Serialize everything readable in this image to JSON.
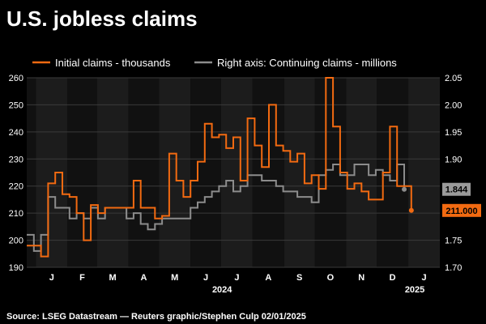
{
  "header": {
    "title": "U.S. jobless claims",
    "source": "Source: LSEG Datastream — Reuters graphic/Stephen Culp 02/01/2025"
  },
  "colors": {
    "background": "#000000",
    "band_light": "#1c1c1c",
    "band_dark": "#111111",
    "initial": "#f26a11",
    "continuing": "#8c8c8c",
    "grid": "#3a3a3a"
  },
  "chart_data": {
    "type": "line",
    "grid": true,
    "legend_position": "top",
    "legend": [
      "Initial claims - thousands",
      "Right axis: Continuing claims - millions"
    ],
    "y_left": {
      "min": 190,
      "max": 260,
      "ticks": [
        "190",
        "200",
        "210",
        "220",
        "230",
        "240",
        "250",
        "260"
      ]
    },
    "y_right": {
      "min": 1.7,
      "max": 2.05,
      "ticks": [
        "1.70",
        "1.75",
        "1.80",
        "1.85",
        "1.90",
        "1.95",
        "2.00",
        "2.05"
      ]
    },
    "x_range": [
      "2023-12-23",
      "2025-02-01"
    ],
    "month_labels": [
      "J",
      "F",
      "M",
      "A",
      "M",
      "J",
      "J",
      "A",
      "S",
      "O",
      "N",
      "D",
      "J"
    ],
    "year_labels": [
      "2024",
      "2025"
    ],
    "series": [
      {
        "name": "Initial claims - thousands",
        "axis": "left",
        "points": [
          [
            "2023-12-23",
            198
          ],
          [
            "2023-12-30",
            198
          ],
          [
            "2024-01-06",
            194
          ],
          [
            "2024-01-13",
            221
          ],
          [
            "2024-01-20",
            225
          ],
          [
            "2024-01-27",
            217
          ],
          [
            "2024-02-03",
            216
          ],
          [
            "2024-02-10",
            210
          ],
          [
            "2024-02-17",
            200
          ],
          [
            "2024-02-24",
            213
          ],
          [
            "2024-03-02",
            210
          ],
          [
            "2024-03-09",
            212
          ],
          [
            "2024-03-16",
            212
          ],
          [
            "2024-03-23",
            212
          ],
          [
            "2024-03-30",
            212
          ],
          [
            "2024-04-06",
            222
          ],
          [
            "2024-04-13",
            212
          ],
          [
            "2024-04-20",
            212
          ],
          [
            "2024-04-27",
            208
          ],
          [
            "2024-05-04",
            209
          ],
          [
            "2024-05-11",
            232
          ],
          [
            "2024-05-18",
            222
          ],
          [
            "2024-05-25",
            216
          ],
          [
            "2024-06-01",
            222
          ],
          [
            "2024-06-08",
            229
          ],
          [
            "2024-06-15",
            243
          ],
          [
            "2024-06-22",
            238
          ],
          [
            "2024-06-29",
            239
          ],
          [
            "2024-07-06",
            234
          ],
          [
            "2024-07-13",
            238
          ],
          [
            "2024-07-20",
            222
          ],
          [
            "2024-07-27",
            245
          ],
          [
            "2024-08-03",
            235
          ],
          [
            "2024-08-10",
            227
          ],
          [
            "2024-08-17",
            250
          ],
          [
            "2024-08-24",
            235
          ],
          [
            "2024-08-31",
            233
          ],
          [
            "2024-09-07",
            229
          ],
          [
            "2024-09-14",
            232
          ],
          [
            "2024-09-21",
            221
          ],
          [
            "2024-09-28",
            224
          ],
          [
            "2024-10-05",
            219
          ],
          [
            "2024-10-12",
            260
          ],
          [
            "2024-10-19",
            242
          ],
          [
            "2024-10-26",
            225
          ],
          [
            "2024-11-02",
            219
          ],
          [
            "2024-11-09",
            221
          ],
          [
            "2024-11-16",
            218
          ],
          [
            "2024-11-23",
            215
          ],
          [
            "2024-11-30",
            215
          ],
          [
            "2024-12-07",
            225
          ],
          [
            "2024-12-14",
            242
          ],
          [
            "2024-12-21",
            220
          ],
          [
            "2024-12-28",
            220
          ],
          [
            "2025-01-04",
            211
          ]
        ],
        "last_value_label": "211.000"
      },
      {
        "name": "Right axis: Continuing claims - millions",
        "axis": "right",
        "points": [
          [
            "2023-12-23",
            1.76
          ],
          [
            "2023-12-30",
            1.73
          ],
          [
            "2024-01-06",
            1.76
          ],
          [
            "2024-01-13",
            1.83
          ],
          [
            "2024-01-20",
            1.81
          ],
          [
            "2024-01-27",
            1.81
          ],
          [
            "2024-02-03",
            1.79
          ],
          [
            "2024-02-10",
            1.8
          ],
          [
            "2024-02-17",
            1.79
          ],
          [
            "2024-02-24",
            1.81
          ],
          [
            "2024-03-02",
            1.79
          ],
          [
            "2024-03-09",
            1.81
          ],
          [
            "2024-03-16",
            1.81
          ],
          [
            "2024-03-23",
            1.81
          ],
          [
            "2024-03-30",
            1.79
          ],
          [
            "2024-04-06",
            1.8
          ],
          [
            "2024-04-13",
            1.78
          ],
          [
            "2024-04-20",
            1.77
          ],
          [
            "2024-04-27",
            1.78
          ],
          [
            "2024-05-04",
            1.79
          ],
          [
            "2024-05-11",
            1.79
          ],
          [
            "2024-05-18",
            1.79
          ],
          [
            "2024-05-25",
            1.79
          ],
          [
            "2024-06-01",
            1.81
          ],
          [
            "2024-06-08",
            1.82
          ],
          [
            "2024-06-15",
            1.83
          ],
          [
            "2024-06-22",
            1.84
          ],
          [
            "2024-06-29",
            1.85
          ],
          [
            "2024-07-06",
            1.86
          ],
          [
            "2024-07-13",
            1.84
          ],
          [
            "2024-07-20",
            1.85
          ],
          [
            "2024-07-27",
            1.87
          ],
          [
            "2024-08-03",
            1.87
          ],
          [
            "2024-08-10",
            1.86
          ],
          [
            "2024-08-17",
            1.86
          ],
          [
            "2024-08-24",
            1.85
          ],
          [
            "2024-08-31",
            1.84
          ],
          [
            "2024-09-07",
            1.84
          ],
          [
            "2024-09-14",
            1.83
          ],
          [
            "2024-09-21",
            1.83
          ],
          [
            "2024-09-28",
            1.82
          ],
          [
            "2024-10-05",
            1.87
          ],
          [
            "2024-10-12",
            1.88
          ],
          [
            "2024-10-19",
            1.89
          ],
          [
            "2024-10-26",
            1.87
          ],
          [
            "2024-11-02",
            1.87
          ],
          [
            "2024-11-09",
            1.89
          ],
          [
            "2024-11-16",
            1.89
          ],
          [
            "2024-11-23",
            1.87
          ],
          [
            "2024-11-30",
            1.88
          ],
          [
            "2024-12-07",
            1.87
          ],
          [
            "2024-12-14",
            1.86
          ],
          [
            "2024-12-21",
            1.89
          ],
          [
            "2024-12-28",
            1.844
          ]
        ],
        "last_value_label": "1.844"
      }
    ]
  }
}
